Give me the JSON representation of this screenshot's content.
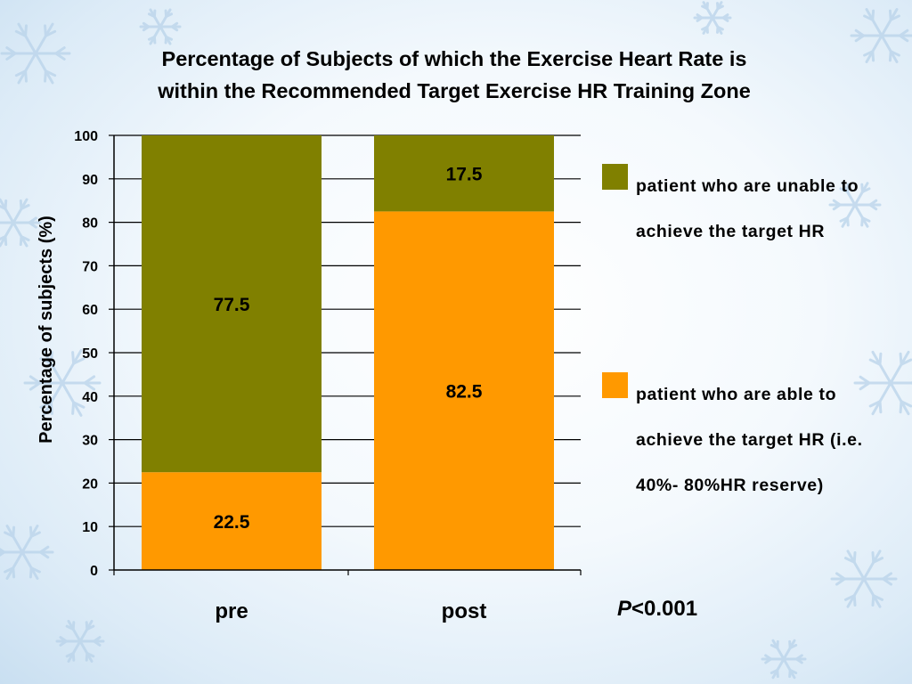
{
  "title_line1": "Percentage of Subjects of which the Exercise Heart Rate is",
  "title_line2": "within the Recommended Target Exercise HR Training Zone",
  "colors": {
    "unable": "#808000",
    "able": "#ff9900"
  },
  "legend": [
    {
      "key": "unable",
      "text": "patient who are unable to achieve the target HR",
      "color": "#808000"
    },
    {
      "key": "able",
      "text": "patient who are able to achieve the target HR (i.e. 40%- 80%HR reserve)",
      "color": "#ff9900"
    }
  ],
  "pvalue": {
    "p": "P",
    "rest": "<0.001"
  },
  "chart_data": {
    "type": "bar",
    "stacked": true,
    "title": "Percentage of Subjects of which the Exercise Heart Rate is within the Recommended Target Exercise HR Training Zone",
    "xlabel": "",
    "ylabel": "Percentage  of subjects (%)",
    "categories": [
      "pre",
      "post"
    ],
    "series": [
      {
        "name": "patient who are able to achieve the target HR (i.e. 40%- 80%HR reserve)",
        "color": "#ff9900",
        "values": [
          22.5,
          82.5
        ]
      },
      {
        "name": "patient who are unable to achieve the target HR",
        "color": "#808000",
        "values": [
          77.5,
          17.5
        ]
      }
    ],
    "data_labels": [
      [
        "22.5",
        "82.5"
      ],
      [
        "77.5",
        "17.5"
      ]
    ],
    "ylim": [
      0,
      100
    ],
    "yticks": [
      0,
      10,
      20,
      30,
      40,
      50,
      60,
      70,
      80,
      90,
      100
    ],
    "grid": true,
    "legend_position": "right"
  }
}
